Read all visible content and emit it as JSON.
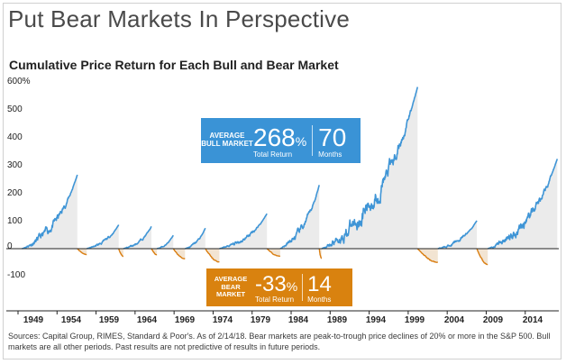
{
  "header": {
    "title": "Put Bear Markets In Perspective"
  },
  "colors": {
    "bull": "#3f95d6",
    "bear": "#d97d10",
    "bull_fill": "#ebebeb",
    "bear_fill": "#f2e4d2",
    "callout_bull": "#3a93d6",
    "callout_bear": "#d9820f",
    "axis": "#222222"
  },
  "callouts": {
    "bull": {
      "label": "AVERAGE BULL MARKET",
      "return_value": "268",
      "return_unit": "%",
      "return_label": "Total Return",
      "months_value": "70",
      "months_label": "Months"
    },
    "bear": {
      "label": "AVERAGE BEAR MARKET",
      "return_value": "-33",
      "return_unit": "%",
      "return_label": "Total Return",
      "months_value": "14",
      "months_label": "Months"
    }
  },
  "footer": {
    "sources": "Sources: Capital Group, RIMES, Standard & Poor's. As of 2/14/18. Bear markets are peak-to-trough price declines of 20% or more in the S&P 500. Bull markets are all other periods. Past results are not predictive of results in future periods."
  },
  "chart_data": {
    "type": "line",
    "title": "Cumulative Price Return for Each Bull and Bear Market",
    "y_ticks": [
      "600%",
      "500",
      "400",
      "300",
      "200",
      "100",
      "0",
      "-100"
    ],
    "x_ticks": [
      "1949",
      "1954",
      "1959",
      "1964",
      "1969",
      "1974",
      "1979",
      "1984",
      "1989",
      "1994",
      "1999",
      "2004",
      "2009",
      "2014"
    ],
    "x_tick_values": [
      1949,
      1954,
      1959,
      1964,
      1969,
      1974,
      1979,
      1984,
      1989,
      1994,
      1999,
      2004,
      2009,
      2014
    ],
    "xlim": [
      1947.5,
      2018.3
    ],
    "ylim": [
      -120,
      600
    ],
    "series": [
      {
        "type": "bull",
        "start": 1949.5,
        "end": 1956.6,
        "peak": 266
      },
      {
        "type": "bear",
        "start": 1956.6,
        "end": 1957.8,
        "trough": -21
      },
      {
        "type": "bull",
        "start": 1957.8,
        "end": 1961.9,
        "peak": 86
      },
      {
        "type": "bear",
        "start": 1961.9,
        "end": 1962.5,
        "trough": -28
      },
      {
        "type": "bull",
        "start": 1962.5,
        "end": 1966.1,
        "peak": 80
      },
      {
        "type": "bear",
        "start": 1966.1,
        "end": 1966.8,
        "trough": -22
      },
      {
        "type": "bull",
        "start": 1966.8,
        "end": 1968.9,
        "peak": 48
      },
      {
        "type": "bear",
        "start": 1968.9,
        "end": 1970.4,
        "trough": -36
      },
      {
        "type": "bull",
        "start": 1970.4,
        "end": 1973.0,
        "peak": 74
      },
      {
        "type": "bear",
        "start": 1973.0,
        "end": 1974.8,
        "trough": -48
      },
      {
        "type": "bull",
        "start": 1974.8,
        "end": 1980.9,
        "peak": 126
      },
      {
        "type": "bear",
        "start": 1980.9,
        "end": 1982.6,
        "trough": -27
      },
      {
        "type": "bull",
        "start": 1982.6,
        "end": 1987.6,
        "peak": 229
      },
      {
        "type": "bear",
        "start": 1987.6,
        "end": 1987.9,
        "trough": -34
      },
      {
        "type": "bull",
        "start": 1987.9,
        "end": 2000.2,
        "peak": 582
      },
      {
        "type": "bear",
        "start": 2000.2,
        "end": 2002.8,
        "trough": -49
      },
      {
        "type": "bull",
        "start": 2002.8,
        "end": 2007.8,
        "peak": 101
      },
      {
        "type": "bear",
        "start": 2007.8,
        "end": 2009.2,
        "trough": -57
      },
      {
        "type": "bull",
        "start": 2009.2,
        "end": 2018.1,
        "peak": 323
      }
    ]
  }
}
